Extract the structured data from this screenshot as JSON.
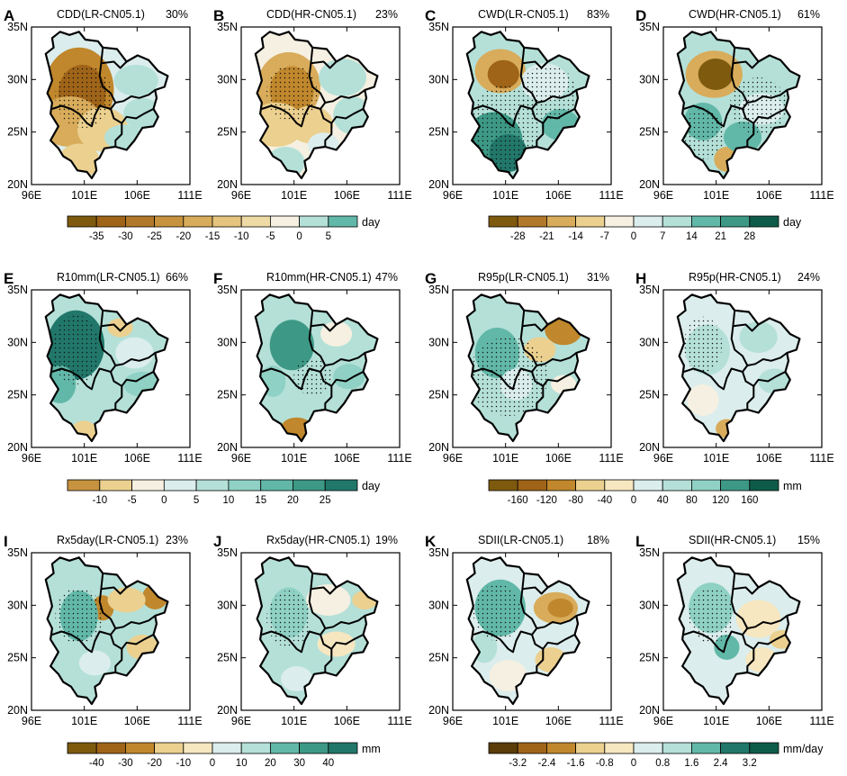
{
  "colors": {
    "brown": [
      "#7e5a0f",
      "#9f6418",
      "#c0872c",
      "#d8ac5b",
      "#ebd08f",
      "#f6e7c0"
    ],
    "cream": "#f5f0e1",
    "teal": [
      "#dbedec",
      "#b4e0d8",
      "#8fd1c4",
      "#62b8a8",
      "#3d9986",
      "#21776a",
      "#0f5b4a"
    ],
    "border": "#000000",
    "frame": "#000000"
  },
  "axes": {
    "lat_labels": [
      "35N",
      "30N",
      "25N",
      "20N"
    ],
    "lon_labels": [
      "96E",
      "101E",
      "106E",
      "111E"
    ]
  },
  "chart_data": [
    {
      "type": "heatmap",
      "label": "A",
      "title": "CDD(LR-CN05.1)",
      "pct": "30%",
      "variant": "cdd_lr",
      "stipple": true
    },
    {
      "type": "heatmap",
      "label": "B",
      "title": "CDD(HR-CN05.1)",
      "pct": "23%",
      "variant": "cdd_hr",
      "stipple": true
    },
    {
      "type": "heatmap",
      "label": "C",
      "title": "CWD(LR-CN05.1)",
      "pct": "83%",
      "variant": "cwd_lr",
      "stipple": true
    },
    {
      "type": "heatmap",
      "label": "D",
      "title": "CWD(HR-CN05.1)",
      "pct": "61%",
      "variant": "cwd_hr",
      "stipple": true
    },
    {
      "type": "heatmap",
      "label": "E",
      "title": "R10mm(LR-CN05.1)",
      "pct": "66%",
      "variant": "r10_lr",
      "stipple": true
    },
    {
      "type": "heatmap",
      "label": "F",
      "title": "R10mm(HR-CN05.1)",
      "pct": "47%",
      "variant": "r10_hr",
      "stipple": true
    },
    {
      "type": "heatmap",
      "label": "G",
      "title": "R95p(LR-CN05.1)",
      "pct": "31%",
      "variant": "r95_lr",
      "stipple": true
    },
    {
      "type": "heatmap",
      "label": "H",
      "title": "R95p(HR-CN05.1)",
      "pct": "24%",
      "variant": "r95_hr",
      "stipple": true
    },
    {
      "type": "heatmap",
      "label": "I",
      "title": "Rx5day(LR-CN05.1)",
      "pct": "23%",
      "variant": "rx5_lr",
      "stipple": true
    },
    {
      "type": "heatmap",
      "label": "J",
      "title": "Rx5day(HR-CN05.1)",
      "pct": "19%",
      "variant": "rx5_hr",
      "stipple": true
    },
    {
      "type": "heatmap",
      "label": "K",
      "title": "SDII(LR-CN05.1)",
      "pct": "18%",
      "variant": "sdii_lr",
      "stipple": true
    },
    {
      "type": "heatmap",
      "label": "L",
      "title": "SDII(HR-CN05.1)",
      "pct": "15%",
      "variant": "sdii_hr",
      "stipple": true
    }
  ],
  "colorbars": [
    {
      "name": "cdd",
      "unit": "day",
      "labels": [
        "-35",
        "-30",
        "-25",
        "-20",
        "-15",
        "-10",
        "-5",
        "0",
        "5"
      ],
      "boxes": [
        "#7e5a0f",
        "#9f6418",
        "#b3792a",
        "#c7933f",
        "#d8ac5b",
        "#e5c47e",
        "#eedaa5",
        "#f5f0e1",
        "#b4e0d8",
        "#62b8a8"
      ]
    },
    {
      "name": "cwd",
      "unit": "day",
      "labels": [
        "-28",
        "-21",
        "-14",
        "-7",
        "0",
        "7",
        "14",
        "21",
        "28"
      ],
      "boxes": [
        "#7e5a0f",
        "#b3792a",
        "#d8ac5b",
        "#ebd08f",
        "#f5f0e1",
        "#dbedec",
        "#b4e0d8",
        "#62b8a8",
        "#3d9986",
        "#0f5b4a"
      ]
    },
    {
      "name": "r10",
      "unit": "day",
      "labels": [
        "-10",
        "-5",
        "0",
        "5",
        "10",
        "15",
        "20",
        "25"
      ],
      "boxes": [
        "#c7933f",
        "#ebd08f",
        "#f5f0e1",
        "#dbedec",
        "#b4e0d8",
        "#8fd1c4",
        "#62b8a8",
        "#3d9986",
        "#21776a"
      ]
    },
    {
      "name": "r95",
      "unit": "mm",
      "labels": [
        "-160",
        "-120",
        "-80",
        "-40",
        "0",
        "40",
        "80",
        "120",
        "160"
      ],
      "boxes": [
        "#7e5a0f",
        "#9f6418",
        "#c0872c",
        "#ebd08f",
        "#f6e7c0",
        "#dbedec",
        "#b4e0d8",
        "#8fd1c4",
        "#3d9986",
        "#0f5b4a"
      ]
    },
    {
      "name": "rx5",
      "unit": "mm",
      "labels": [
        "-40",
        "-30",
        "-20",
        "-10",
        "0",
        "10",
        "20",
        "30",
        "40"
      ],
      "boxes": [
        "#7e5a0f",
        "#9f6418",
        "#c0872c",
        "#ebd08f",
        "#f6e7c0",
        "#dbedec",
        "#b4e0d8",
        "#62b8a8",
        "#3d9986",
        "#21776a"
      ]
    },
    {
      "name": "sdii",
      "unit": "mm/day",
      "labels": [
        "-3.2",
        "-2.4",
        "-1.6",
        "-0.8",
        "0",
        "0.8",
        "1.6",
        "2.4",
        "3.2"
      ],
      "boxes": [
        "#5a3d08",
        "#9f6418",
        "#c0872c",
        "#ebd08f",
        "#f6e7c0",
        "#dbedec",
        "#b4e0d8",
        "#62b8a8",
        "#21776a",
        "#0f5b4a"
      ]
    }
  ]
}
